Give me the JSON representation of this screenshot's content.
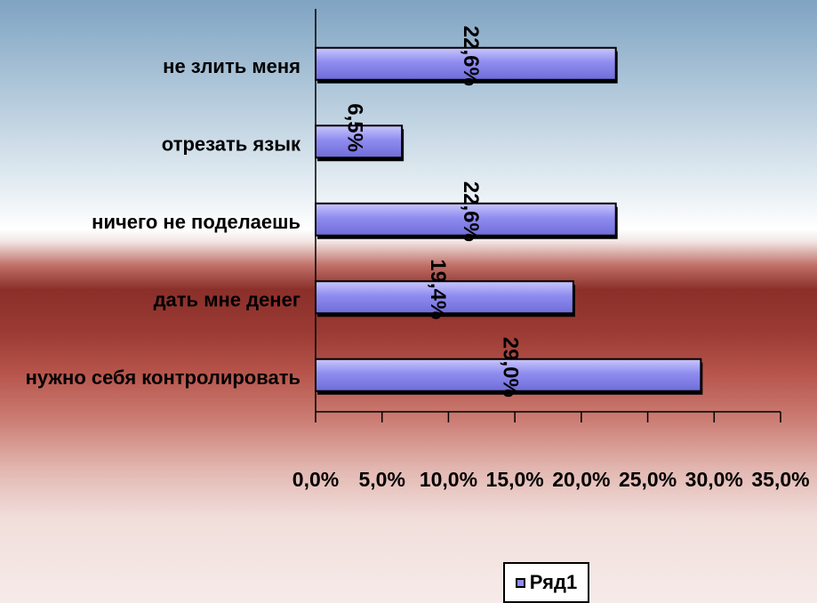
{
  "chart_data": {
    "type": "bar",
    "orientation": "horizontal",
    "categories": [
      "не злить меня",
      "отрезать язык",
      "ничего не поделаешь",
      "дать мне денег",
      "нужно себя контролировать"
    ],
    "series": [
      {
        "name": "Ряд1",
        "values": [
          22.6,
          6.5,
          22.6,
          19.4,
          29.0
        ]
      }
    ],
    "data_labels": [
      "22,6%",
      "6,5%",
      "22,6%",
      "19,4%",
      "29,0%"
    ],
    "x_ticks": [
      "0,0%",
      "5,0%",
      "10,0%",
      "15,0%",
      "20,0%",
      "25,0%",
      "30,0%",
      "35,0%"
    ],
    "xlim": [
      0,
      35
    ],
    "x_unit": "%",
    "bar_color": "#8f8cf0",
    "grid": false,
    "legend": {
      "position": "bottom",
      "label": "Ряд1"
    }
  }
}
